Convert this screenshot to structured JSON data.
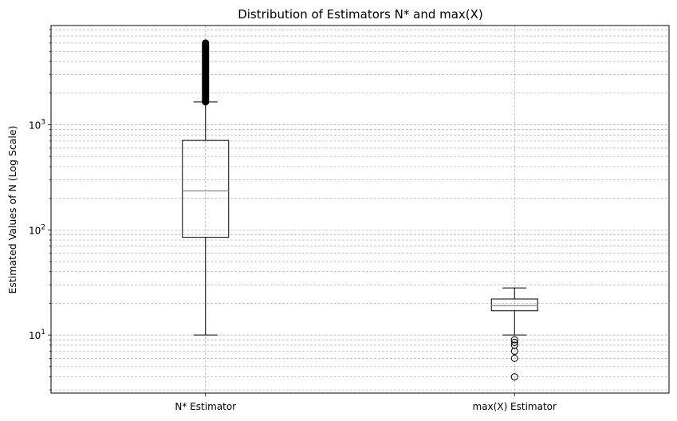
{
  "chart_data": {
    "type": "box",
    "title": "Distribution of Estimators N* and max(X)",
    "xlabel": "",
    "ylabel": "Estimated Values of N (Log Scale)",
    "yscale": "log",
    "ylim": [
      2.8,
      8800
    ],
    "ytick_values": [
      10,
      100,
      1000
    ],
    "ytick_labels": [
      "10",
      "10",
      "10"
    ],
    "ytick_exponents": [
      "1",
      "2",
      "3"
    ],
    "grid": true,
    "categories": [
      "N* Estimator",
      "max(X) Estimator"
    ],
    "boxes": [
      {
        "label": "N* Estimator",
        "whisker_low": 10,
        "q1": 85,
        "median": 235,
        "q3": 710,
        "whisker_high": 1650,
        "outliers_range": [
          1650,
          6000
        ]
      },
      {
        "label": "max(X) Estimator",
        "whisker_low": 10,
        "q1": 17,
        "median": 19,
        "q3": 22,
        "whisker_high": 28,
        "outliers": [
          9,
          8.5,
          8,
          7,
          6,
          4
        ]
      }
    ],
    "colors": {
      "box": "#000000",
      "median": "#999999",
      "grid": "#b0b0b0"
    }
  }
}
